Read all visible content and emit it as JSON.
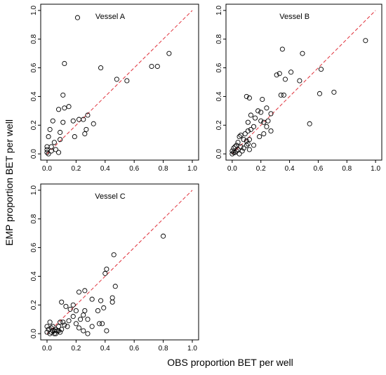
{
  "figure": {
    "ylabel": "EMP proportion BET per well",
    "xlabel": "OBS proportion BET per well"
  },
  "chart_data": [
    {
      "type": "scatter",
      "title": "Vessel A",
      "xlim": [
        0,
        1
      ],
      "ylim": [
        0,
        1
      ],
      "xticks": [
        "0.0",
        "0.2",
        "0.4",
        "0.6",
        "0.8",
        "1.0"
      ],
      "yticks": [
        "0.0",
        "0.2",
        "0.4",
        "0.6",
        "0.8",
        "1.0"
      ],
      "reference_line": "y = x (red dashed)",
      "points": [
        [
          0.21,
          0.95
        ],
        [
          0.12,
          0.63
        ],
        [
          0.37,
          0.6
        ],
        [
          0.11,
          0.41
        ],
        [
          0.48,
          0.52
        ],
        [
          0.55,
          0.51
        ],
        [
          0.72,
          0.61
        ],
        [
          0.76,
          0.61
        ],
        [
          0.84,
          0.7
        ],
        [
          0.15,
          0.33
        ],
        [
          0.12,
          0.32
        ],
        [
          0.08,
          0.31
        ],
        [
          0.28,
          0.27
        ],
        [
          0.22,
          0.24
        ],
        [
          0.25,
          0.24
        ],
        [
          0.18,
          0.23
        ],
        [
          0.04,
          0.23
        ],
        [
          0.11,
          0.22
        ],
        [
          0.32,
          0.21
        ],
        [
          0.27,
          0.17
        ],
        [
          0.26,
          0.14
        ],
        [
          0.02,
          0.17
        ],
        [
          0.09,
          0.15
        ],
        [
          0.01,
          0.12
        ],
        [
          0.19,
          0.12
        ],
        [
          0.09,
          0.1
        ],
        [
          0.05,
          0.08
        ],
        [
          0.06,
          0.03
        ],
        [
          0.03,
          0.02
        ],
        [
          0.0,
          0.03
        ],
        [
          0.0,
          0.01
        ],
        [
          0.01,
          0.0
        ],
        [
          0.03,
          0.05
        ],
        [
          0.0,
          0.05
        ],
        [
          0.08,
          0.01
        ]
      ]
    },
    {
      "type": "scatter",
      "title": "Vessel B",
      "xlim": [
        0,
        1
      ],
      "ylim": [
        0,
        1
      ],
      "xticks": [
        "0.0",
        "0.2",
        "0.4",
        "0.6",
        "0.8",
        "1.0"
      ],
      "yticks": [
        "0.0",
        "0.2",
        "0.4",
        "0.6",
        "0.8",
        "1.0"
      ],
      "reference_line": "y = x (red dashed)",
      "points": [
        [
          0.93,
          0.79
        ],
        [
          0.35,
          0.73
        ],
        [
          0.49,
          0.7
        ],
        [
          0.62,
          0.59
        ],
        [
          0.41,
          0.57
        ],
        [
          0.33,
          0.56
        ],
        [
          0.31,
          0.55
        ],
        [
          0.37,
          0.52
        ],
        [
          0.47,
          0.51
        ],
        [
          0.71,
          0.43
        ],
        [
          0.61,
          0.42
        ],
        [
          0.36,
          0.41
        ],
        [
          0.34,
          0.41
        ],
        [
          0.1,
          0.4
        ],
        [
          0.12,
          0.39
        ],
        [
          0.21,
          0.38
        ],
        [
          0.24,
          0.32
        ],
        [
          0.18,
          0.3
        ],
        [
          0.2,
          0.29
        ],
        [
          0.27,
          0.28
        ],
        [
          0.13,
          0.27
        ],
        [
          0.16,
          0.25
        ],
        [
          0.11,
          0.22
        ],
        [
          0.22,
          0.22
        ],
        [
          0.2,
          0.23
        ],
        [
          0.25,
          0.23
        ],
        [
          0.24,
          0.19
        ],
        [
          0.27,
          0.16
        ],
        [
          0.54,
          0.21
        ],
        [
          0.15,
          0.19
        ],
        [
          0.13,
          0.17
        ],
        [
          0.11,
          0.16
        ],
        [
          0.09,
          0.14
        ],
        [
          0.19,
          0.12
        ],
        [
          0.22,
          0.14
        ],
        [
          0.06,
          0.13
        ],
        [
          0.05,
          0.12
        ],
        [
          0.08,
          0.1
        ],
        [
          0.12,
          0.1
        ],
        [
          0.1,
          0.09
        ],
        [
          0.11,
          0.07
        ],
        [
          0.15,
          0.06
        ],
        [
          0.04,
          0.08
        ],
        [
          0.03,
          0.06
        ],
        [
          0.02,
          0.05
        ],
        [
          0.01,
          0.04
        ],
        [
          0.0,
          0.02
        ],
        [
          0.02,
          0.01
        ],
        [
          0.04,
          0.03
        ],
        [
          0.06,
          0.05
        ],
        [
          0.08,
          0.04
        ],
        [
          0.0,
          0.0
        ],
        [
          0.01,
          0.01
        ],
        [
          0.03,
          0.02
        ],
        [
          0.05,
          0.0
        ],
        [
          0.07,
          0.02
        ],
        [
          0.1,
          0.06
        ],
        [
          0.12,
          0.03
        ]
      ]
    },
    {
      "type": "scatter",
      "title": "Vessel C",
      "xlim": [
        0,
        1
      ],
      "ylim": [
        0,
        1
      ],
      "xticks": [
        "0.0",
        "0.2",
        "0.4",
        "0.6",
        "0.8",
        "1.0"
      ],
      "yticks": [
        "0.0",
        "0.2",
        "0.4",
        "0.6",
        "0.8",
        "1.0"
      ],
      "reference_line": "y = x (red dashed)",
      "points": [
        [
          0.8,
          0.68
        ],
        [
          0.46,
          0.55
        ],
        [
          0.41,
          0.45
        ],
        [
          0.4,
          0.42
        ],
        [
          0.47,
          0.33
        ],
        [
          0.26,
          0.3
        ],
        [
          0.22,
          0.29
        ],
        [
          0.31,
          0.24
        ],
        [
          0.37,
          0.23
        ],
        [
          0.45,
          0.25
        ],
        [
          0.45,
          0.22
        ],
        [
          0.18,
          0.2
        ],
        [
          0.1,
          0.22
        ],
        [
          0.13,
          0.19
        ],
        [
          0.16,
          0.17
        ],
        [
          0.2,
          0.16
        ],
        [
          0.26,
          0.16
        ],
        [
          0.39,
          0.18
        ],
        [
          0.35,
          0.16
        ],
        [
          0.25,
          0.13
        ],
        [
          0.28,
          0.1
        ],
        [
          0.23,
          0.1
        ],
        [
          0.18,
          0.12
        ],
        [
          0.15,
          0.09
        ],
        [
          0.11,
          0.08
        ],
        [
          0.09,
          0.08
        ],
        [
          0.2,
          0.07
        ],
        [
          0.22,
          0.04
        ],
        [
          0.36,
          0.07
        ],
        [
          0.38,
          0.07
        ],
        [
          0.41,
          0.02
        ],
        [
          0.31,
          0.05
        ],
        [
          0.14,
          0.05
        ],
        [
          0.12,
          0.06
        ],
        [
          0.25,
          0.02
        ],
        [
          0.28,
          0.0
        ],
        [
          0.08,
          0.05
        ],
        [
          0.06,
          0.03
        ],
        [
          0.05,
          0.02
        ],
        [
          0.03,
          0.01
        ],
        [
          0.02,
          0.0
        ],
        [
          0.0,
          0.01
        ],
        [
          0.01,
          0.03
        ],
        [
          0.04,
          0.05
        ],
        [
          0.07,
          0.02
        ],
        [
          0.09,
          0.01
        ],
        [
          0.1,
          0.03
        ],
        [
          0.05,
          0.0
        ],
        [
          0.0,
          0.05
        ],
        [
          0.02,
          0.08
        ],
        [
          0.04,
          0.02
        ],
        [
          0.06,
          0.0
        ],
        [
          0.08,
          0.02
        ],
        [
          0.03,
          0.04
        ]
      ]
    }
  ]
}
